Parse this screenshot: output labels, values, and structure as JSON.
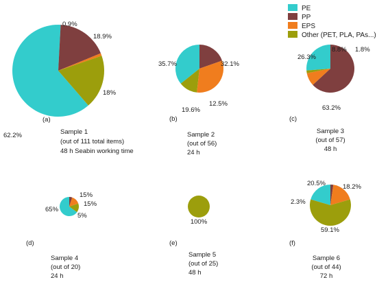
{
  "chart_data": {
    "type": "pie",
    "legend": {
      "placement": "top-right",
      "entries": [
        {
          "label": "PE",
          "color": "#33CCCC"
        },
        {
          "label": "PP",
          "color": "#7F3F3F"
        },
        {
          "label": "EPS",
          "color": "#F07D1E"
        },
        {
          "label": "Other (PET, PLA, PAs...)",
          "color": "#9C9E0C"
        }
      ]
    },
    "charts": [
      {
        "panel": "(a)",
        "caption": [
          "Sample 1",
          "(out of 111 total items)",
          "48 h Seabin working time"
        ],
        "slices": [
          {
            "category": "PE",
            "value": 62.2,
            "label": "62.2%"
          },
          {
            "category": "PP",
            "value": 18.0,
            "label": "18%"
          },
          {
            "category": "EPS",
            "value": 0.9,
            "label": "0.9%"
          },
          {
            "category": "Other (PET, PLA, PAs...)",
            "value": 18.9,
            "label": "18.9%"
          }
        ]
      },
      {
        "panel": "(b)",
        "caption": [
          "Sample 2",
          "(out of 56)",
          "24 h"
        ],
        "slices": [
          {
            "category": "PE",
            "value": 35.7,
            "label": "35.7%"
          },
          {
            "category": "PP",
            "value": 19.6,
            "label": "19.6%"
          },
          {
            "category": "EPS",
            "value": 32.1,
            "label": "32.1%"
          },
          {
            "category": "Other (PET, PLA, PAs...)",
            "value": 12.5,
            "label": "12.5%"
          }
        ]
      },
      {
        "panel": "(c)",
        "caption": [
          "Sample 3",
          "(out of 57)",
          "48 h"
        ],
        "slices": [
          {
            "category": "PE",
            "value": 26.3,
            "label": "26.3%"
          },
          {
            "category": "PP",
            "value": 63.2,
            "label": "63.2%"
          },
          {
            "category": "EPS",
            "value": 8.8,
            "label": "8.8%"
          },
          {
            "category": "Other (PET, PLA, PAs...)",
            "value": 1.8,
            "label": "1.8%"
          }
        ]
      },
      {
        "panel": "(d)",
        "caption": [
          "Sample 4",
          "(out of 20)",
          "24 h"
        ],
        "slices": [
          {
            "category": "PE",
            "value": 65,
            "label": "65%"
          },
          {
            "category": "PP",
            "value": 5,
            "label": "5%"
          },
          {
            "category": "EPS",
            "value": 15,
            "label": "15%"
          },
          {
            "category": "Other (PET, PLA, PAs...)",
            "value": 15,
            "label": "15%"
          }
        ]
      },
      {
        "panel": "(e)",
        "caption": [
          "Sample 5",
          "(out of 25)",
          "48 h"
        ],
        "slices": [
          {
            "category": "Other (PET, PLA, PAs...)",
            "value": 100,
            "label": "100%"
          }
        ]
      },
      {
        "panel": "(f)",
        "caption": [
          "Sample 6",
          "(out of 44)",
          "72 h"
        ],
        "slices": [
          {
            "category": "PE",
            "value": 20.5,
            "label": "20.5%"
          },
          {
            "category": "PP",
            "value": 2.3,
            "label": "2.3%"
          },
          {
            "category": "EPS",
            "value": 18.2,
            "label": "18.2%"
          },
          {
            "category": "Other (PET, PLA, PAs...)",
            "value": 59.1,
            "label": "59.1%"
          }
        ]
      }
    ]
  }
}
